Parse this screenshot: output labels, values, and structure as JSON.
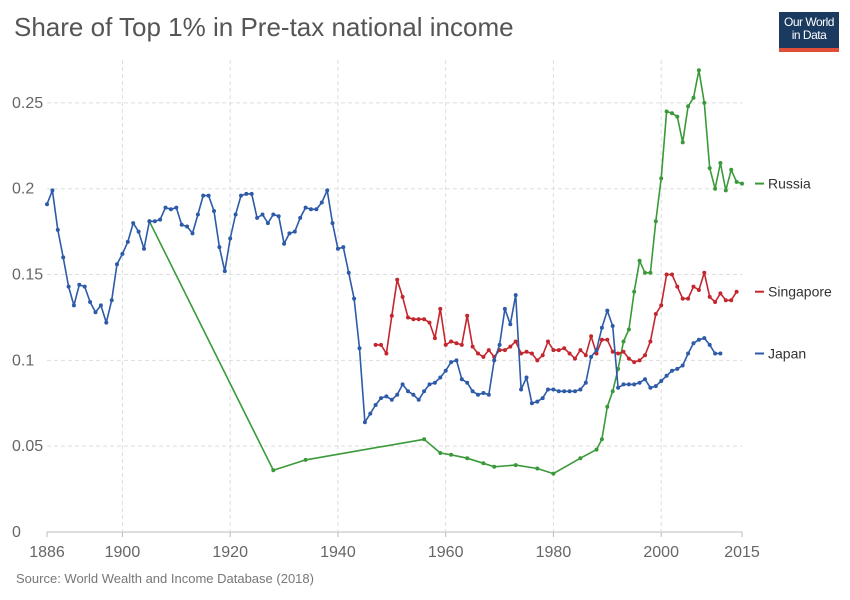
{
  "header": {
    "title": "Share of Top 1% in Pre-tax national income",
    "logo_line_1": "Our World",
    "logo_line_2": "in Data"
  },
  "footer": {
    "source": "Source: World Wealth and Income Database (2018)"
  },
  "chart_data": {
    "type": "line",
    "title": "Share of Top 1% in Pre-tax national income",
    "xlabel": "",
    "ylabel": "",
    "xlim": [
      1886,
      2015
    ],
    "ylim": [
      0,
      0.27
    ],
    "x_ticks": [
      1886,
      1900,
      1920,
      1940,
      1960,
      1980,
      2000,
      2015
    ],
    "x_tick_labels": [
      "1886",
      "1900",
      "1920",
      "1940",
      "1960",
      "1980",
      "2000",
      "2015"
    ],
    "y_ticks": [
      0,
      0.05,
      0.1,
      0.15,
      0.2,
      0.25
    ],
    "y_tick_labels": [
      "0",
      "0.05",
      "0.1",
      "0.15",
      "0.2",
      "0.25"
    ],
    "grid": true,
    "legend_placement": "right, labels at line ends",
    "series": [
      {
        "name": "Russia",
        "color": "#3a9a3a",
        "points": [
          [
            1905,
            0.181
          ],
          [
            1928,
            0.036
          ],
          [
            1934,
            0.042
          ],
          [
            1956,
            0.054
          ],
          [
            1959,
            0.046
          ],
          [
            1961,
            0.045
          ],
          [
            1964,
            0.043
          ],
          [
            1967,
            0.04
          ],
          [
            1969,
            0.038
          ],
          [
            1973,
            0.039
          ],
          [
            1977,
            0.037
          ],
          [
            1980,
            0.034
          ],
          [
            1985,
            0.043
          ],
          [
            1988,
            0.048
          ],
          [
            1989,
            0.054
          ],
          [
            1990,
            0.073
          ],
          [
            1991,
            0.082
          ],
          [
            1992,
            0.095
          ],
          [
            1993,
            0.111
          ],
          [
            1994,
            0.118
          ],
          [
            1995,
            0.14
          ],
          [
            1996,
            0.158
          ],
          [
            1997,
            0.151
          ],
          [
            1998,
            0.151
          ],
          [
            1999,
            0.181
          ],
          [
            2000,
            0.206
          ],
          [
            2001,
            0.245
          ],
          [
            2002,
            0.244
          ],
          [
            2003,
            0.242
          ],
          [
            2004,
            0.227
          ],
          [
            2005,
            0.248
          ],
          [
            2006,
            0.253
          ],
          [
            2007,
            0.269
          ],
          [
            2008,
            0.25
          ],
          [
            2009,
            0.212
          ],
          [
            2010,
            0.2
          ],
          [
            2011,
            0.215
          ],
          [
            2012,
            0.199
          ],
          [
            2013,
            0.211
          ],
          [
            2014,
            0.204
          ],
          [
            2015,
            0.203
          ]
        ]
      },
      {
        "name": "Singapore",
        "color": "#c4262e",
        "points": [
          [
            1947,
            0.109
          ],
          [
            1948,
            0.109
          ],
          [
            1949,
            0.104
          ],
          [
            1950,
            0.126
          ],
          [
            1951,
            0.147
          ],
          [
            1952,
            0.137
          ],
          [
            1953,
            0.125
          ],
          [
            1954,
            0.124
          ],
          [
            1955,
            0.124
          ],
          [
            1956,
            0.124
          ],
          [
            1957,
            0.122
          ],
          [
            1958,
            0.113
          ],
          [
            1959,
            0.13
          ],
          [
            1960,
            0.109
          ],
          [
            1961,
            0.111
          ],
          [
            1962,
            0.11
          ],
          [
            1963,
            0.109
          ],
          [
            1964,
            0.126
          ],
          [
            1965,
            0.108
          ],
          [
            1966,
            0.104
          ],
          [
            1967,
            0.102
          ],
          [
            1968,
            0.106
          ],
          [
            1969,
            0.102
          ],
          [
            1970,
            0.106
          ],
          [
            1971,
            0.106
          ],
          [
            1972,
            0.108
          ],
          [
            1973,
            0.111
          ],
          [
            1974,
            0.104
          ],
          [
            1975,
            0.105
          ],
          [
            1976,
            0.104
          ],
          [
            1977,
            0.1
          ],
          [
            1978,
            0.103
          ],
          [
            1979,
            0.111
          ],
          [
            1980,
            0.106
          ],
          [
            1981,
            0.106
          ],
          [
            1982,
            0.107
          ],
          [
            1983,
            0.104
          ],
          [
            1984,
            0.101
          ],
          [
            1985,
            0.106
          ],
          [
            1986,
            0.103
          ],
          [
            1987,
            0.114
          ],
          [
            1988,
            0.104
          ],
          [
            1989,
            0.112
          ],
          [
            1990,
            0.112
          ],
          [
            1991,
            0.105
          ],
          [
            1992,
            0.104
          ],
          [
            1993,
            0.105
          ],
          [
            1994,
            0.101
          ],
          [
            1995,
            0.099
          ],
          [
            1996,
            0.1
          ],
          [
            1997,
            0.103
          ],
          [
            1998,
            0.111
          ],
          [
            1999,
            0.127
          ],
          [
            2000,
            0.132
          ],
          [
            2001,
            0.15
          ],
          [
            2002,
            0.15
          ],
          [
            2003,
            0.143
          ],
          [
            2004,
            0.136
          ],
          [
            2005,
            0.136
          ],
          [
            2006,
            0.143
          ],
          [
            2007,
            0.141
          ],
          [
            2008,
            0.151
          ],
          [
            2009,
            0.137
          ],
          [
            2010,
            0.134
          ],
          [
            2011,
            0.139
          ],
          [
            2012,
            0.135
          ],
          [
            2013,
            0.135
          ],
          [
            2014,
            0.14
          ]
        ]
      },
      {
        "name": "Japan",
        "color": "#2d5ba8",
        "points": [
          [
            1886,
            0.191
          ],
          [
            1887,
            0.199
          ],
          [
            1888,
            0.176
          ],
          [
            1889,
            0.16
          ],
          [
            1890,
            0.143
          ],
          [
            1891,
            0.132
          ],
          [
            1892,
            0.144
          ],
          [
            1893,
            0.143
          ],
          [
            1894,
            0.134
          ],
          [
            1895,
            0.128
          ],
          [
            1896,
            0.132
          ],
          [
            1897,
            0.122
          ],
          [
            1898,
            0.135
          ],
          [
            1899,
            0.156
          ],
          [
            1900,
            0.162
          ],
          [
            1901,
            0.169
          ],
          [
            1902,
            0.18
          ],
          [
            1903,
            0.175
          ],
          [
            1904,
            0.165
          ],
          [
            1905,
            0.181
          ],
          [
            1906,
            0.181
          ],
          [
            1907,
            0.182
          ],
          [
            1908,
            0.189
          ],
          [
            1909,
            0.188
          ],
          [
            1910,
            0.189
          ],
          [
            1911,
            0.179
          ],
          [
            1912,
            0.178
          ],
          [
            1913,
            0.174
          ],
          [
            1914,
            0.185
          ],
          [
            1915,
            0.196
          ],
          [
            1916,
            0.196
          ],
          [
            1917,
            0.187
          ],
          [
            1918,
            0.166
          ],
          [
            1919,
            0.152
          ],
          [
            1920,
            0.171
          ],
          [
            1921,
            0.185
          ],
          [
            1922,
            0.196
          ],
          [
            1923,
            0.197
          ],
          [
            1924,
            0.197
          ],
          [
            1925,
            0.183
          ],
          [
            1926,
            0.185
          ],
          [
            1927,
            0.18
          ],
          [
            1928,
            0.185
          ],
          [
            1929,
            0.184
          ],
          [
            1930,
            0.168
          ],
          [
            1931,
            0.174
          ],
          [
            1932,
            0.175
          ],
          [
            1933,
            0.183
          ],
          [
            1934,
            0.189
          ],
          [
            1935,
            0.188
          ],
          [
            1936,
            0.188
          ],
          [
            1937,
            0.192
          ],
          [
            1938,
            0.199
          ],
          [
            1939,
            0.18
          ],
          [
            1940,
            0.165
          ],
          [
            1941,
            0.166
          ],
          [
            1942,
            0.151
          ],
          [
            1943,
            0.136
          ],
          [
            1944,
            0.107
          ],
          [
            1945,
            0.064
          ],
          [
            1946,
            0.069
          ],
          [
            1947,
            0.074
          ],
          [
            1948,
            0.078
          ],
          [
            1949,
            0.079
          ],
          [
            1950,
            0.077
          ],
          [
            1951,
            0.08
          ],
          [
            1952,
            0.086
          ],
          [
            1953,
            0.082
          ],
          [
            1954,
            0.08
          ],
          [
            1955,
            0.077
          ],
          [
            1956,
            0.082
          ],
          [
            1957,
            0.086
          ],
          [
            1958,
            0.087
          ],
          [
            1959,
            0.09
          ],
          [
            1960,
            0.094
          ],
          [
            1961,
            0.099
          ],
          [
            1962,
            0.1
          ],
          [
            1963,
            0.089
          ],
          [
            1964,
            0.087
          ],
          [
            1965,
            0.082
          ],
          [
            1966,
            0.08
          ],
          [
            1967,
            0.081
          ],
          [
            1968,
            0.08
          ],
          [
            1969,
            0.1
          ],
          [
            1970,
            0.109
          ],
          [
            1971,
            0.13
          ],
          [
            1972,
            0.121
          ],
          [
            1973,
            0.138
          ],
          [
            1974,
            0.083
          ],
          [
            1975,
            0.09
          ],
          [
            1976,
            0.075
          ],
          [
            1977,
            0.076
          ],
          [
            1978,
            0.078
          ],
          [
            1979,
            0.083
          ],
          [
            1980,
            0.083
          ],
          [
            1981,
            0.082
          ],
          [
            1982,
            0.082
          ],
          [
            1983,
            0.082
          ],
          [
            1984,
            0.082
          ],
          [
            1985,
            0.083
          ],
          [
            1986,
            0.087
          ],
          [
            1987,
            0.102
          ],
          [
            1988,
            0.106
          ],
          [
            1989,
            0.119
          ],
          [
            1990,
            0.129
          ],
          [
            1991,
            0.12
          ],
          [
            1992,
            0.084
          ],
          [
            1993,
            0.086
          ],
          [
            1994,
            0.086
          ],
          [
            1995,
            0.086
          ],
          [
            1996,
            0.087
          ],
          [
            1997,
            0.089
          ],
          [
            1998,
            0.084
          ],
          [
            1999,
            0.085
          ],
          [
            2000,
            0.088
          ],
          [
            2001,
            0.091
          ],
          [
            2002,
            0.094
          ],
          [
            2003,
            0.095
          ],
          [
            2004,
            0.097
          ],
          [
            2005,
            0.104
          ],
          [
            2006,
            0.11
          ],
          [
            2007,
            0.112
          ],
          [
            2008,
            0.113
          ],
          [
            2009,
            0.109
          ],
          [
            2010,
            0.104
          ],
          [
            2011,
            0.104
          ]
        ]
      }
    ]
  }
}
